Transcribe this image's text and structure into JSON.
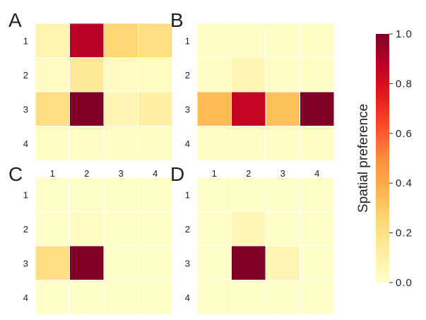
{
  "chart_data": [
    {
      "type": "heatmap",
      "panel": "A",
      "rows": [
        "1",
        "2",
        "3",
        "4"
      ],
      "cols": [
        "1",
        "2",
        "3",
        "4"
      ],
      "values": [
        [
          0.08,
          0.88,
          0.26,
          0.21
        ],
        [
          0.03,
          0.15,
          0.03,
          0.03
        ],
        [
          0.22,
          1.0,
          0.07,
          0.11
        ],
        [
          0.02,
          0.02,
          0.02,
          0.02
        ]
      ]
    },
    {
      "type": "heatmap",
      "panel": "B",
      "rows": [
        "1",
        "2",
        "3",
        "4"
      ],
      "cols": [
        "1",
        "2",
        "3",
        "4"
      ],
      "values": [
        [
          0.02,
          0.02,
          0.02,
          0.02
        ],
        [
          0.02,
          0.07,
          0.02,
          0.02
        ],
        [
          0.35,
          0.85,
          0.33,
          1.0
        ],
        [
          0.02,
          0.02,
          0.02,
          0.02
        ]
      ]
    },
    {
      "type": "heatmap",
      "panel": "C",
      "rows": [
        "1",
        "2",
        "3",
        "4"
      ],
      "cols": [
        "1",
        "2",
        "3",
        "4"
      ],
      "values": [
        [
          0.01,
          0.01,
          0.01,
          0.01
        ],
        [
          0.01,
          0.03,
          0.01,
          0.01
        ],
        [
          0.22,
          1.0,
          0.01,
          0.01
        ],
        [
          0.01,
          0.01,
          0.01,
          0.01
        ]
      ]
    },
    {
      "type": "heatmap",
      "panel": "D",
      "rows": [
        "1",
        "2",
        "3",
        "4"
      ],
      "cols": [
        "1",
        "2",
        "3",
        "4"
      ],
      "values": [
        [
          0.01,
          0.01,
          0.01,
          0.01
        ],
        [
          0.01,
          0.06,
          0.01,
          0.01
        ],
        [
          0.01,
          1.0,
          0.07,
          0.01
        ],
        [
          0.01,
          0.01,
          0.01,
          0.01
        ]
      ]
    }
  ],
  "colorbar": {
    "label": "Spatial preference",
    "ticks": [
      "0.0",
      "0.2",
      "0.4",
      "0.6",
      "0.8",
      "1.0"
    ],
    "range": [
      0,
      1
    ],
    "colormap": "YlOrRd",
    "colors": [
      "#ffffcc",
      "#ffeda0",
      "#fed976",
      "#feb24c",
      "#fd8d3c",
      "#fc4e2a",
      "#e31a1c",
      "#bd0026",
      "#800026"
    ]
  }
}
